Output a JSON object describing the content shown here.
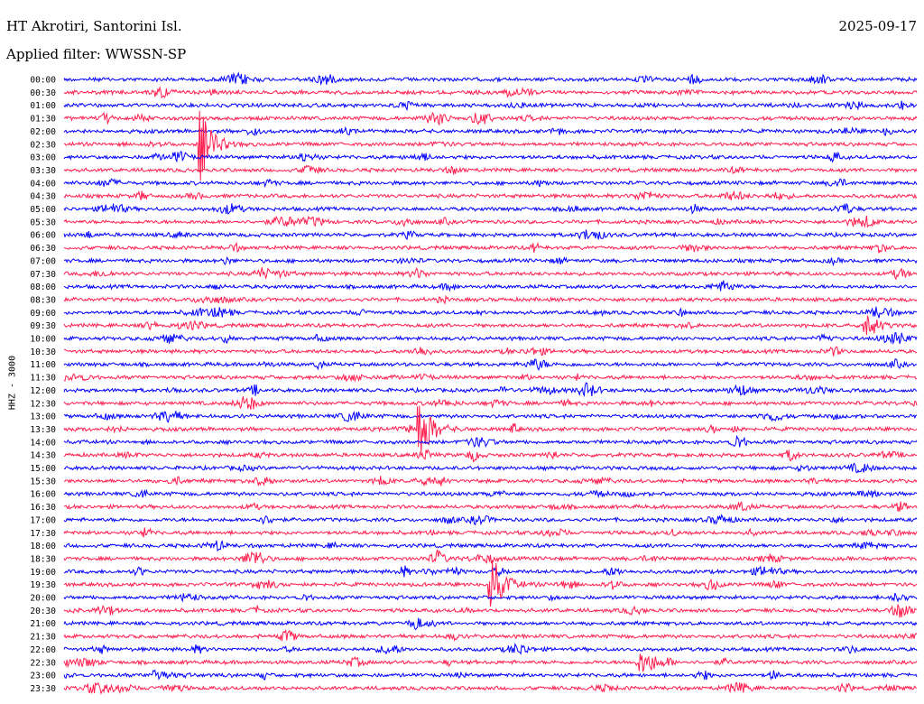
{
  "header": {
    "station": "HT Akrotiri, Santorini Isl.",
    "date": "2025-09-17",
    "filter": "Applied filter: WWSSN-SP"
  },
  "chart_data": {
    "type": "line",
    "title": "HT Akrotiri, Santorini Isl.",
    "ylabel": "HHZ - 3000",
    "xlabel": "",
    "row_labels": [
      "00:00",
      "00:30",
      "01:00",
      "01:30",
      "02:00",
      "02:30",
      "03:00",
      "03:30",
      "04:00",
      "04:30",
      "05:00",
      "05:30",
      "06:00",
      "06:30",
      "07:00",
      "07:30",
      "08:00",
      "08:30",
      "09:00",
      "09:30",
      "10:00",
      "10:30",
      "11:00",
      "11:30",
      "12:00",
      "12:30",
      "13:00",
      "13:30",
      "14:00",
      "14:30",
      "15:00",
      "15:30",
      "16:00",
      "16:30",
      "17:00",
      "17:30",
      "18:00",
      "18:30",
      "19:00",
      "19:30",
      "20:00",
      "20:30",
      "21:00",
      "21:30",
      "22:00",
      "22:30",
      "23:00",
      "23:30"
    ],
    "colors": [
      "#0000ff",
      "#ff1f4f"
    ],
    "events": [
      {
        "row": "02:30",
        "minute": 4.8,
        "amplitude": "large"
      },
      {
        "row": "13:30",
        "minute": 12.5,
        "amplitude": "large"
      },
      {
        "row": "19:30",
        "minute": 15.0,
        "amplitude": "large"
      },
      {
        "row": "09:30",
        "minute": 28.2,
        "amplitude": "medium"
      },
      {
        "row": "22:30",
        "minute": 20.3,
        "amplitude": "small"
      },
      {
        "row": "23:00",
        "minute": 3.2,
        "amplitude": "small"
      }
    ],
    "grid": false
  }
}
